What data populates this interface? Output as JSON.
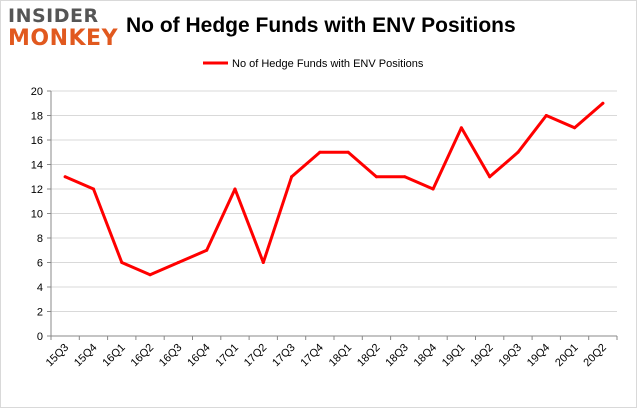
{
  "logo": {
    "line1": "INSIDER",
    "line2": "MONKEY"
  },
  "chart_data": {
    "type": "line",
    "title": "No of Hedge Funds with ENV Positions",
    "xlabel": "",
    "ylabel": "",
    "categories": [
      "15Q3",
      "15Q4",
      "16Q1",
      "16Q2",
      "16Q3",
      "16Q4",
      "17Q1",
      "17Q2",
      "17Q3",
      "17Q4",
      "18Q1",
      "18Q2",
      "18Q3",
      "18Q4",
      "19Q1",
      "19Q2",
      "19Q3",
      "19Q4",
      "20Q1",
      "20Q2"
    ],
    "series": [
      {
        "name": "No of Hedge Funds with ENV  Positions",
        "color": "#ff0000",
        "values": [
          13,
          12,
          6,
          5,
          6,
          7,
          12,
          6,
          13,
          15,
          15,
          13,
          13,
          12,
          17,
          13,
          15,
          18,
          17,
          19
        ]
      }
    ],
    "ylim": [
      0,
      20
    ],
    "yticks": [
      0,
      2,
      4,
      6,
      8,
      10,
      12,
      14,
      16,
      18,
      20
    ],
    "grid": true,
    "legend_position": "top-center",
    "colors": {
      "line": "#ff0000",
      "grid": "#d9d9d9",
      "axis": "#888888",
      "text": "#000000"
    }
  }
}
